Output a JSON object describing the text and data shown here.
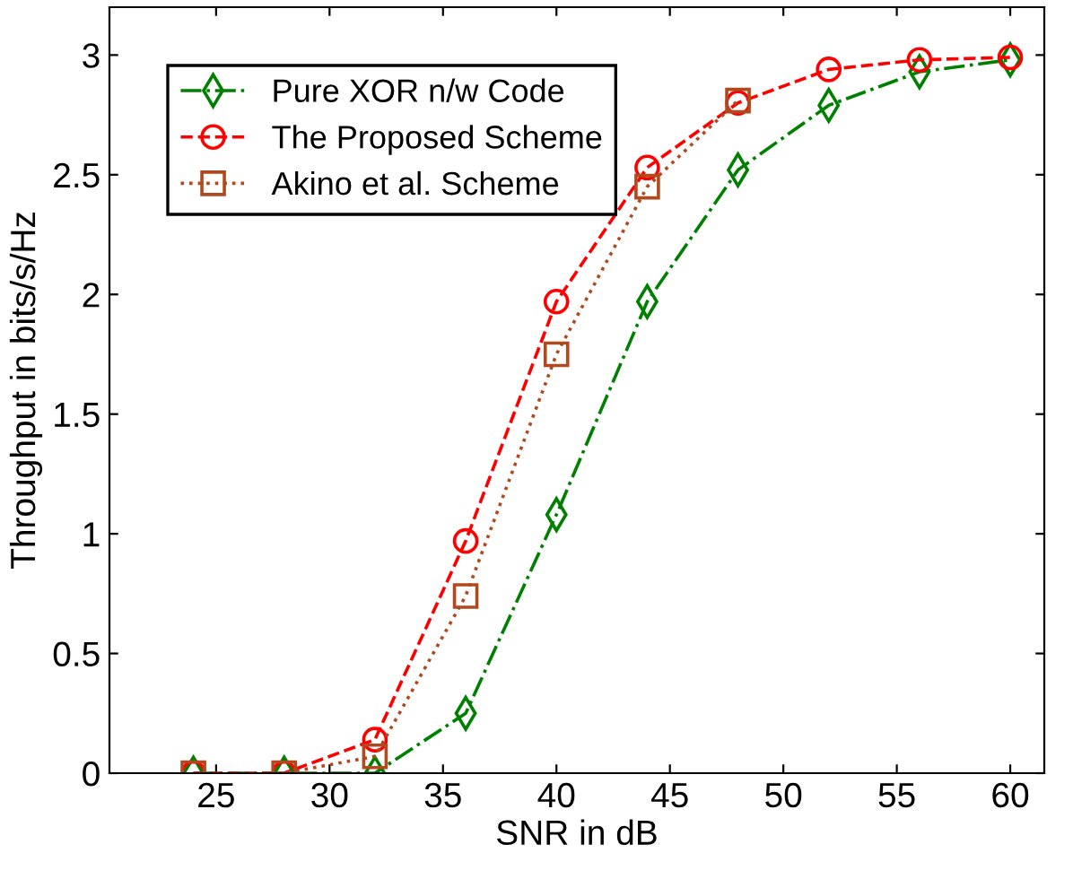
{
  "chart_data": {
    "type": "line",
    "xlabel": "SNR in dB",
    "ylabel": "Throughput in bits/s/Hz",
    "x": [
      24,
      28,
      32,
      36,
      40,
      44,
      48,
      52,
      56,
      60
    ],
    "series": [
      {
        "name": "Pure XOR n/w Code",
        "color": "#008000",
        "marker": "diamond",
        "line_style": "dashdot",
        "values": [
          0,
          0,
          0,
          0.25,
          1.08,
          1.97,
          2.52,
          2.79,
          2.93,
          2.98
        ]
      },
      {
        "name": "The Proposed Scheme",
        "color": "#ff0000",
        "marker": "circle",
        "line_style": "dashed",
        "values": [
          0,
          0,
          0.14,
          0.97,
          1.97,
          2.53,
          2.8,
          2.94,
          2.98,
          2.99
        ]
      },
      {
        "name": "Akino et al. Scheme",
        "color": "#b04a1e",
        "marker": "square",
        "line_style": "dotted",
        "values": [
          0,
          0,
          0.07,
          0.74,
          1.75,
          2.45,
          2.81,
          null,
          null,
          null
        ]
      }
    ],
    "xlim": [
      20.3,
      61.5
    ],
    "ylim": [
      0,
      3.2
    ],
    "xticks": [
      25,
      30,
      35,
      40,
      45,
      50,
      55,
      60
    ],
    "yticks": [
      0,
      0.5,
      1,
      1.5,
      2,
      2.5,
      3
    ],
    "grid": false,
    "legend": "top left"
  }
}
